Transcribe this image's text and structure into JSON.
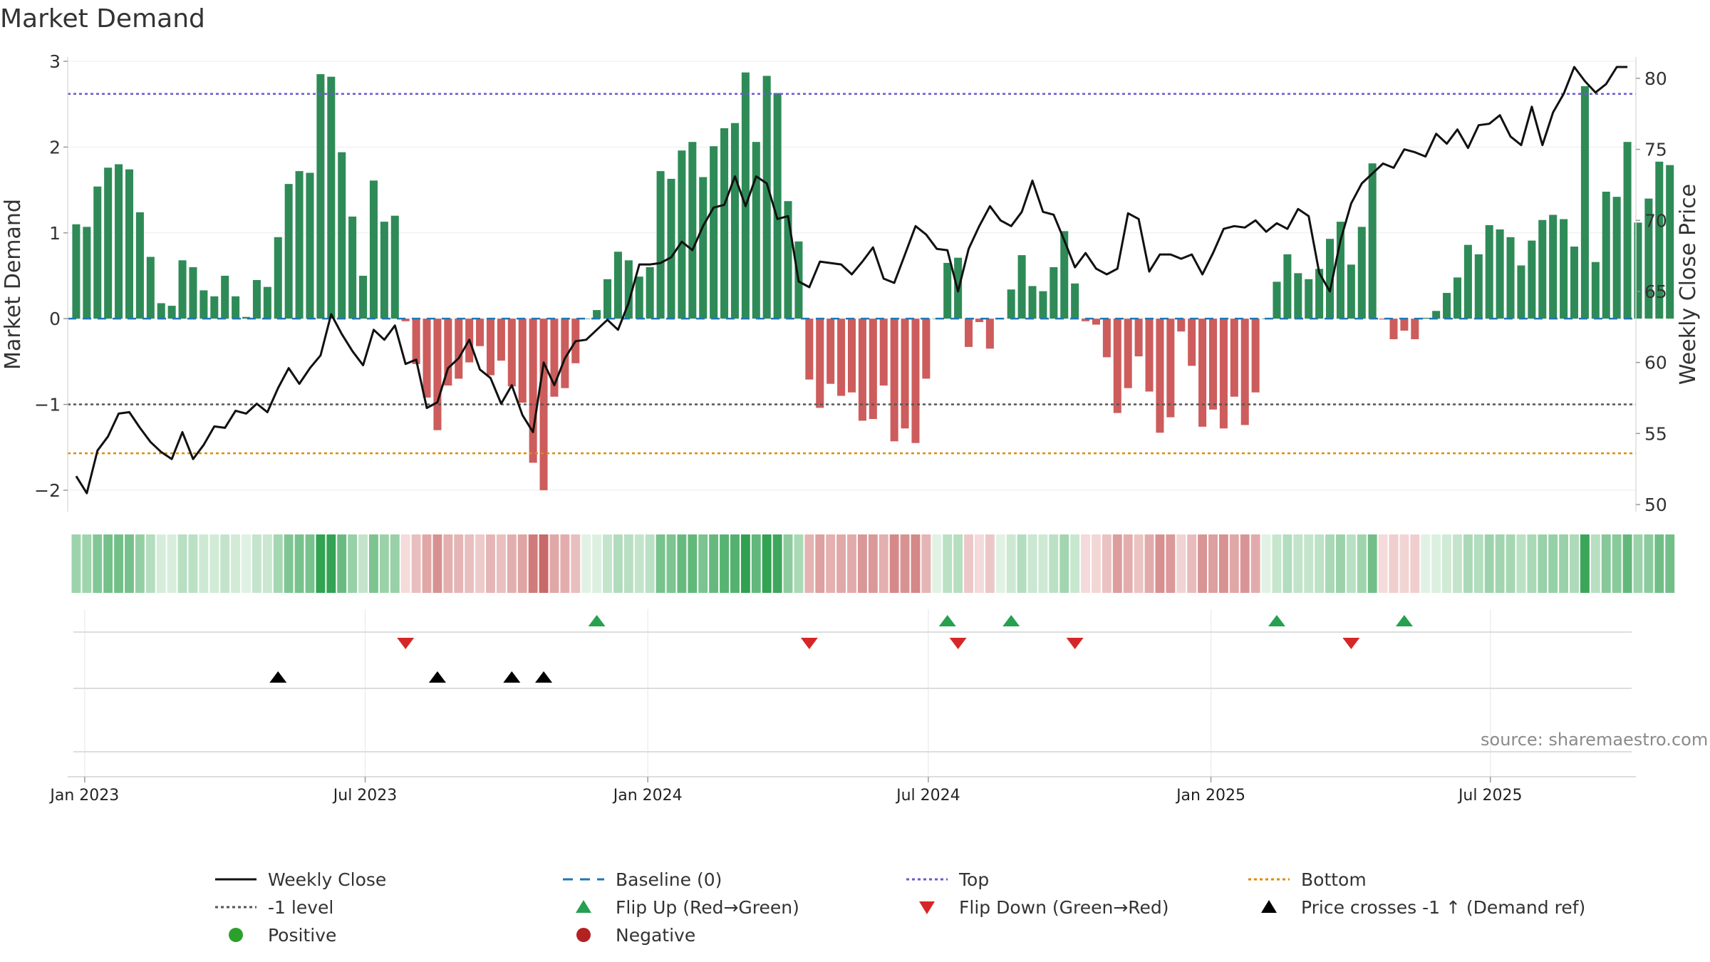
{
  "title": "Market Demand",
  "source": "source: sharemaestro.com",
  "colors": {
    "positive_bar": "#2e8b57",
    "negative_bar": "#cd5c5c",
    "price_line": "#111111",
    "baseline": "#1f77b4",
    "top": "#6a5acd",
    "bottom": "#e08a00",
    "minus1": "#555555",
    "flip_up": "#27a04f",
    "flip_down": "#d62728",
    "cross": "#000000",
    "positive_dot": "#2ca02c",
    "negative_dot": "#b22222"
  },
  "legend": [
    {
      "key": "close",
      "label": "Weekly Close"
    },
    {
      "key": "baseline",
      "label": "Baseline (0)"
    },
    {
      "key": "top",
      "label": "Top"
    },
    {
      "key": "bottom",
      "label": "Bottom"
    },
    {
      "key": "minus1",
      "label": "-1 level"
    },
    {
      "key": "flipup",
      "label": "Flip Up (Red→Green)"
    },
    {
      "key": "flipdown",
      "label": "Flip Down (Green→Red)"
    },
    {
      "key": "cross",
      "label": "Price crosses -1 ↑ (Demand ref)"
    },
    {
      "key": "positive",
      "label": "Positive"
    },
    {
      "key": "negative",
      "label": "Negative"
    }
  ],
  "chart_data": {
    "type": "bar",
    "title": "Market Demand",
    "ylabel": "Market Demand",
    "y2label": "Weekly Close Price",
    "ylim": [
      -2.25,
      3.05
    ],
    "y2lim": [
      49.5,
      81.5
    ],
    "yticks": [
      -2,
      -1,
      0,
      1,
      2,
      3
    ],
    "y2ticks": [
      50,
      55,
      60,
      65,
      70,
      75,
      80
    ],
    "x_start_week": -0.8,
    "x_end_week": 146.8,
    "x_tick_labels": [
      "Jan 2023",
      "Jul 2023",
      "Jan 2024",
      "Jul 2024",
      "Jan 2025",
      "Jul 2025"
    ],
    "x_tick_weeks": [
      0.8,
      27.2,
      53.8,
      80.2,
      106.8,
      133.1
    ],
    "reference_lines": {
      "baseline": 0,
      "top": 2.62,
      "bottom": -1.57,
      "minus1": -1.0
    },
    "demand": [
      1.1,
      1.07,
      1.54,
      1.76,
      1.8,
      1.74,
      1.24,
      0.72,
      0.18,
      0.15,
      0.68,
      0.6,
      0.33,
      0.26,
      0.5,
      0.26,
      0.02,
      0.45,
      0.37,
      0.95,
      1.57,
      1.72,
      1.7,
      2.85,
      2.82,
      1.94,
      1.19,
      0.5,
      1.61,
      1.13,
      1.2,
      -0.03,
      -0.53,
      -0.92,
      -1.3,
      -0.78,
      -0.7,
      -0.51,
      -0.32,
      -0.66,
      -0.49,
      -0.79,
      -0.98,
      -1.68,
      -2.0,
      -0.91,
      -0.81,
      -0.52,
      0.0,
      0.1,
      0.46,
      0.78,
      0.68,
      0.49,
      0.6,
      1.72,
      1.63,
      1.96,
      2.06,
      1.65,
      2.01,
      2.22,
      2.28,
      2.87,
      2.06,
      2.83,
      2.63,
      1.37,
      0.9,
      -0.71,
      -1.04,
      -0.76,
      -0.9,
      -0.86,
      -1.19,
      -1.17,
      -0.78,
      -1.43,
      -1.28,
      -1.45,
      -0.7,
      0.0,
      0.65,
      0.71,
      -0.33,
      -0.04,
      -0.35,
      0.0,
      0.34,
      0.74,
      0.38,
      0.32,
      0.6,
      1.02,
      0.41,
      -0.03,
      -0.07,
      -0.45,
      -1.1,
      -0.81,
      -0.44,
      -0.85,
      -1.33,
      -1.15,
      -0.15,
      -0.55,
      -1.26,
      -1.06,
      -1.28,
      -0.91,
      -1.24,
      -0.86,
      0.0,
      0.43,
      0.75,
      0.53,
      0.46,
      0.58,
      0.93,
      1.13,
      0.63,
      1.07,
      1.81,
      -0.01,
      -0.24,
      -0.14,
      -0.24,
      0.01,
      0.09,
      0.3,
      0.48,
      0.86,
      0.75,
      1.09,
      1.04,
      0.95,
      0.62,
      0.91,
      1.15,
      1.21,
      1.16,
      0.84,
      2.71,
      0.66,
      1.48,
      1.42,
      2.06,
      1.12,
      1.4,
      1.83,
      1.79
    ],
    "close": [
      52.0,
      50.8,
      53.8,
      54.8,
      56.4,
      56.5,
      55.4,
      54.4,
      53.7,
      53.2,
      55.1,
      53.2,
      54.2,
      55.5,
      55.4,
      56.6,
      56.4,
      57.1,
      56.5,
      58.2,
      59.6,
      58.5,
      59.6,
      60.5,
      63.4,
      62.0,
      60.8,
      59.8,
      62.3,
      61.6,
      62.6,
      59.9,
      60.2,
      56.8,
      57.2,
      59.6,
      60.3,
      61.6,
      59.5,
      58.9,
      57.1,
      58.4,
      56.3,
      55.1,
      60.0,
      58.4,
      60.3,
      61.5,
      61.6,
      62.3,
      63.0,
      62.3,
      64.2,
      66.9,
      66.9,
      67.0,
      67.4,
      68.5,
      67.9,
      69.6,
      70.9,
      71.1,
      73.1,
      71.0,
      73.1,
      72.6,
      70.1,
      70.3,
      65.7,
      65.3,
      67.1,
      67.0,
      66.9,
      66.2,
      67.1,
      68.1,
      65.9,
      65.6,
      67.6,
      69.6,
      69.0,
      68.0,
      67.9,
      65.0,
      68.0,
      69.6,
      71.0,
      70.0,
      69.6,
      70.6,
      72.8,
      70.6,
      70.4,
      68.6,
      66.7,
      67.7,
      66.6,
      66.2,
      66.6,
      70.5,
      70.1,
      66.4,
      67.6,
      67.6,
      67.3,
      67.6,
      66.2,
      67.7,
      69.4,
      69.6,
      69.5,
      70.0,
      69.2,
      69.8,
      69.4,
      70.8,
      70.3,
      66.3,
      65.0,
      68.6,
      71.2,
      72.6,
      73.3,
      74.0,
      73.7,
      75.0,
      74.8,
      74.5,
      76.1,
      75.4,
      76.4,
      75.1,
      76.7,
      76.8,
      77.4,
      75.9,
      75.3,
      78.0,
      75.3,
      77.6,
      78.9,
      80.8,
      79.8,
      79.0,
      79.6,
      80.8,
      80.8
    ],
    "color_strip_intensity": [
      0.38,
      0.37,
      0.53,
      0.61,
      0.62,
      0.6,
      0.43,
      0.25,
      0.06,
      0.05,
      0.23,
      0.21,
      0.11,
      0.09,
      0.17,
      0.09,
      0.01,
      0.16,
      0.13,
      0.33,
      0.54,
      0.59,
      0.59,
      0.98,
      0.97,
      0.67,
      0.41,
      0.17,
      0.56,
      0.39,
      0.41,
      0.01,
      0.26,
      0.46,
      0.65,
      0.39,
      0.35,
      0.26,
      0.16,
      0.33,
      0.25,
      0.4,
      0.49,
      0.84,
      1.0,
      0.46,
      0.41,
      0.26,
      0.0,
      0.03,
      0.16,
      0.27,
      0.23,
      0.17,
      0.21,
      0.59,
      0.56,
      0.68,
      0.71,
      0.57,
      0.69,
      0.77,
      0.79,
      0.99,
      0.71,
      0.98,
      0.91,
      0.47,
      0.31,
      0.36,
      0.52,
      0.38,
      0.45,
      0.43,
      0.6,
      0.59,
      0.39,
      0.72,
      0.64,
      0.73,
      0.35,
      0.0,
      0.22,
      0.24,
      0.17,
      0.02,
      0.18,
      0.0,
      0.12,
      0.26,
      0.13,
      0.11,
      0.21,
      0.35,
      0.14,
      0.02,
      0.04,
      0.23,
      0.55,
      0.41,
      0.22,
      0.43,
      0.67,
      0.58,
      0.08,
      0.28,
      0.63,
      0.53,
      0.64,
      0.46,
      0.62,
      0.43,
      0.0,
      0.15,
      0.26,
      0.18,
      0.16,
      0.2,
      0.32,
      0.39,
      0.22,
      0.37,
      0.62,
      0.01,
      0.12,
      0.07,
      0.12,
      0.0,
      0.03,
      0.1,
      0.17,
      0.3,
      0.26,
      0.38,
      0.36,
      0.33,
      0.21,
      0.31,
      0.4,
      0.42,
      0.4,
      0.29,
      0.93,
      0.23,
      0.51,
      0.49,
      0.71,
      0.39,
      0.48,
      0.63,
      0.62
    ],
    "flip_up_weeks": [
      49,
      82,
      88,
      113,
      125
    ],
    "flip_down_weeks": [
      31,
      69,
      83,
      94,
      120
    ],
    "price_cross_weeks": [
      19,
      34,
      41,
      44
    ]
  }
}
